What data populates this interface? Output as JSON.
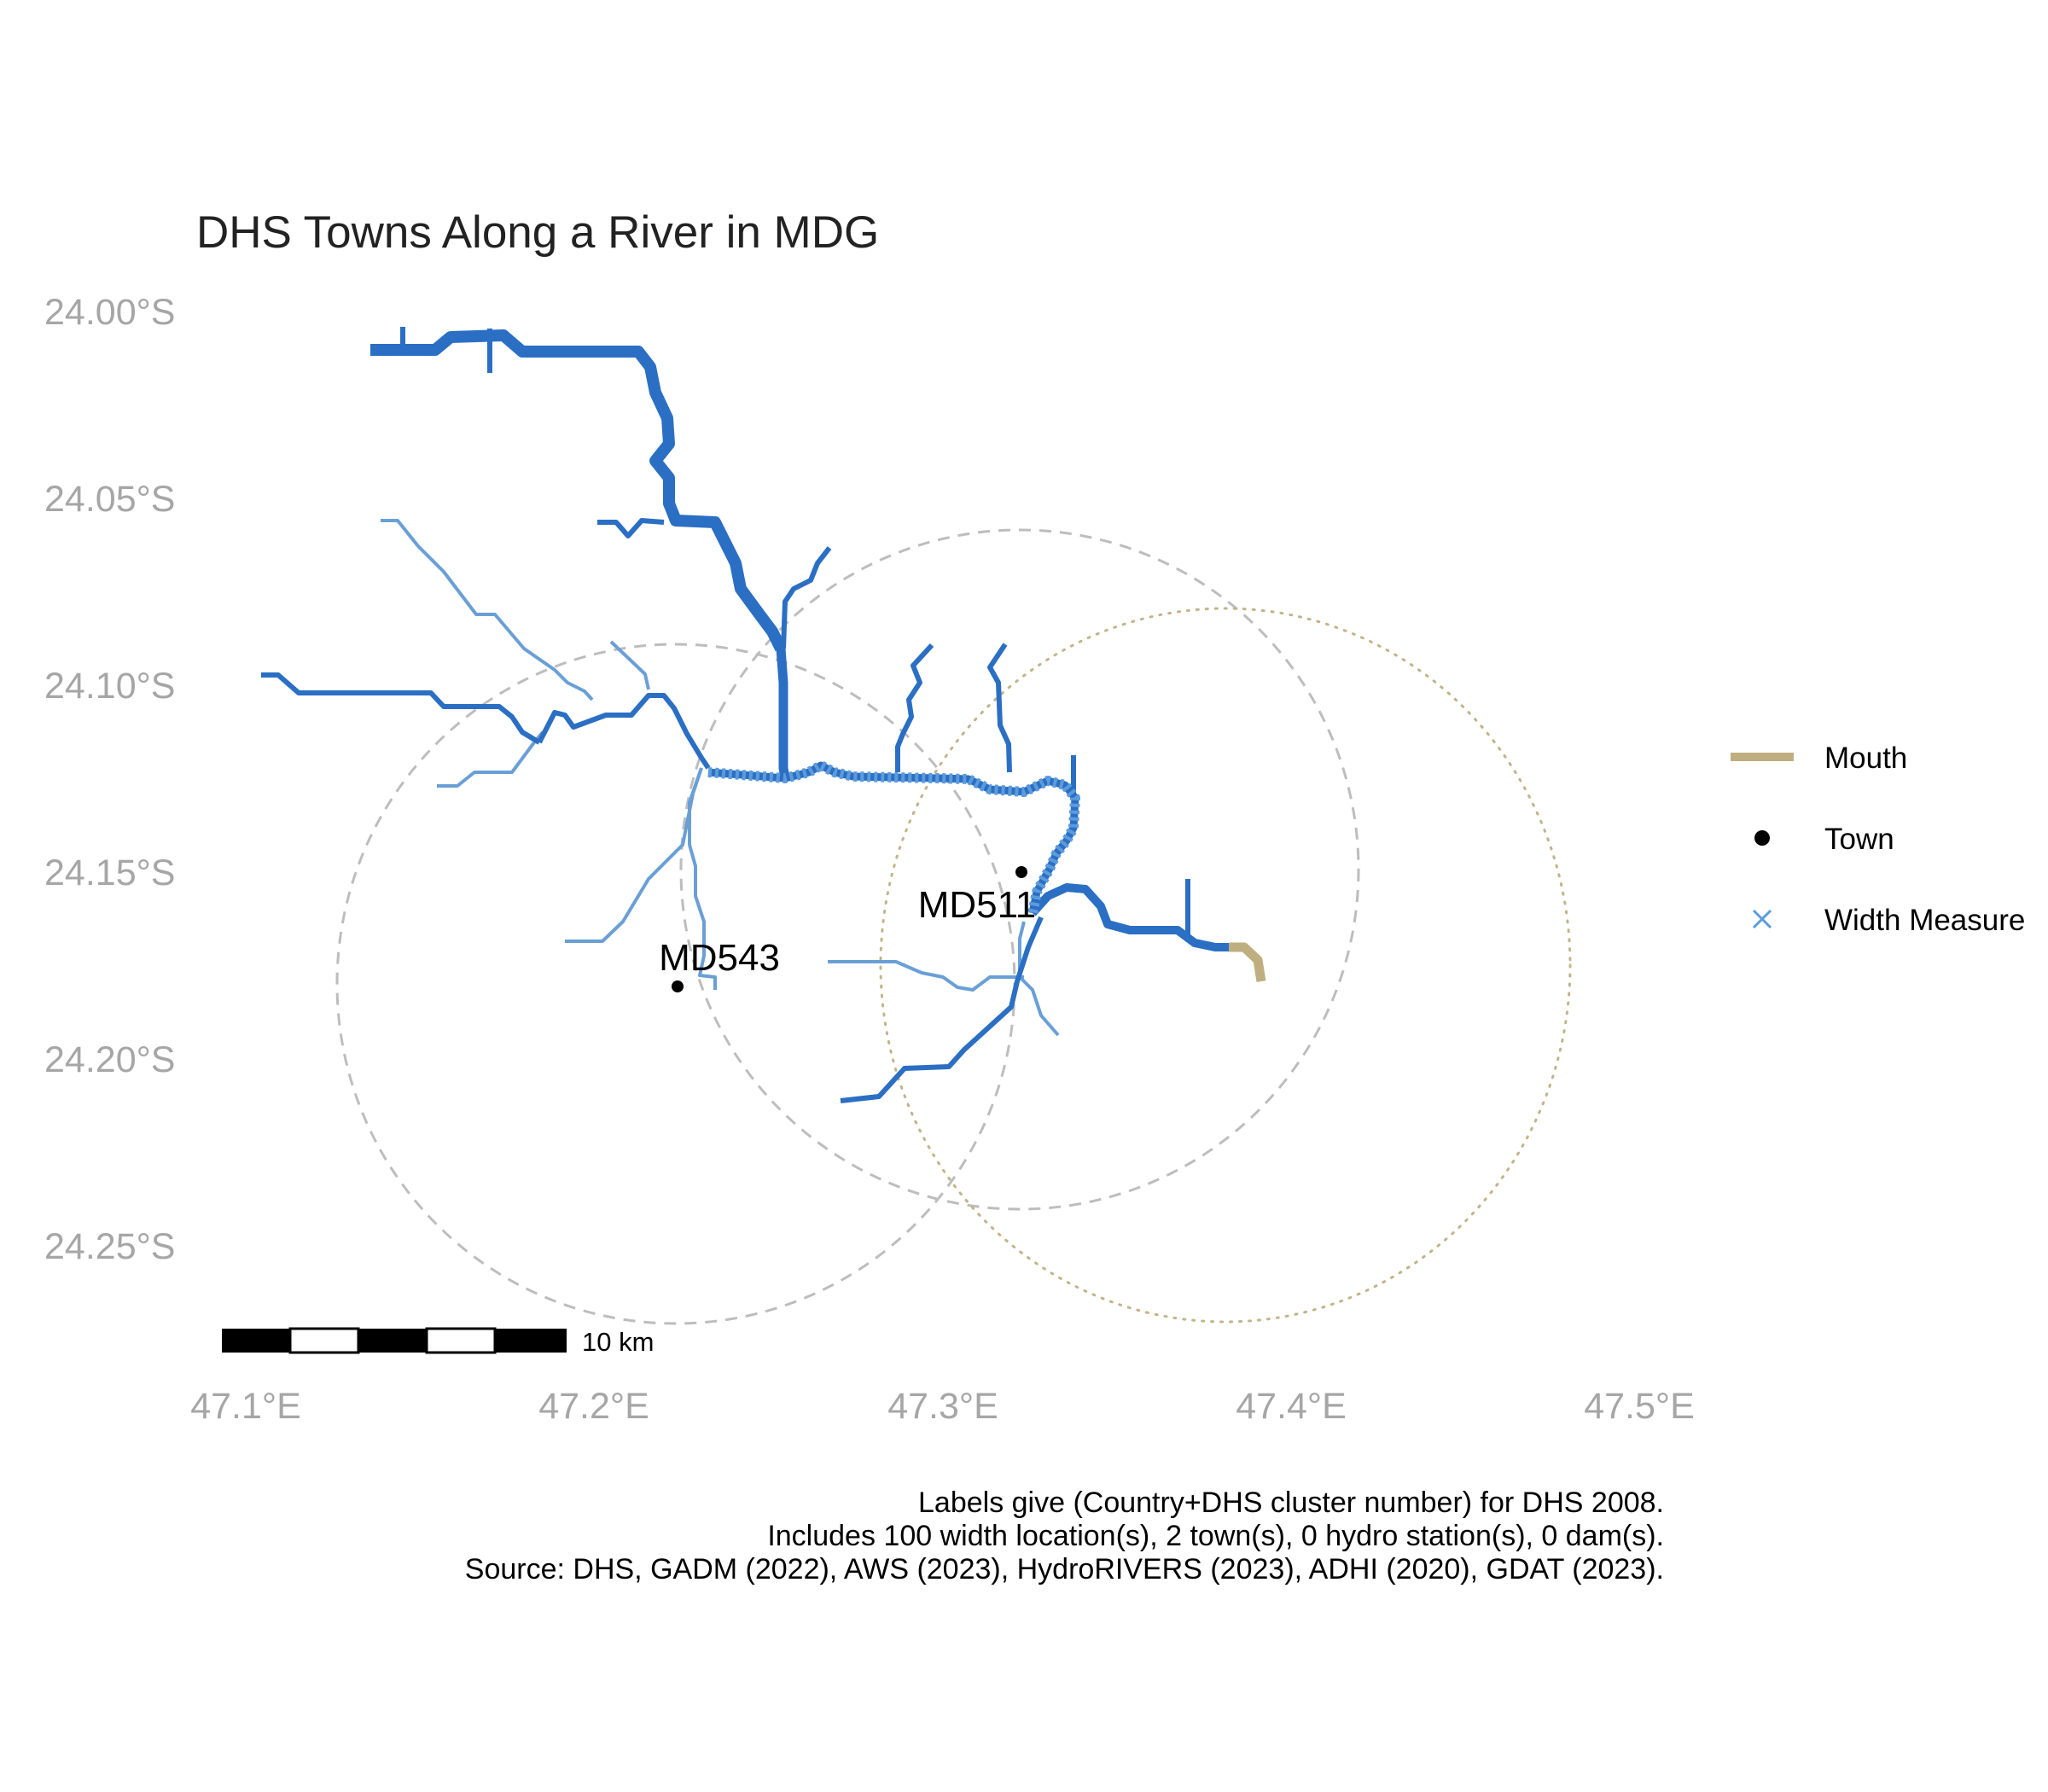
{
  "title": "DHS Towns Along a River in MDG",
  "axes": {
    "y_ticks": [
      "24.00°S",
      "24.05°S",
      "24.10°S",
      "24.15°S",
      "24.20°S",
      "24.25°S"
    ],
    "x_ticks": [
      "47.1°E",
      "47.2°E",
      "47.3°E",
      "47.4°E",
      "47.5°E"
    ]
  },
  "legend": {
    "items": [
      {
        "label": "Mouth",
        "symbol": "line",
        "color": "#bfae7f"
      },
      {
        "label": "Town",
        "symbol": "dot",
        "color": "#000000"
      },
      {
        "label": "Width Measure",
        "symbol": "cross",
        "color": "#5b9bdc"
      }
    ]
  },
  "towns": [
    {
      "label": "MD511",
      "lon": 47.327,
      "lat": 24.15
    },
    {
      "label": "MD543",
      "lon": 47.229,
      "lat": 24.18
    }
  ],
  "scale_bar": {
    "label": "10 km"
  },
  "caption": [
    "Labels give (Country+DHS cluster number) for DHS 2008.",
    "Includes 100 width location(s), 2 town(s), 0 hydro station(s), 0 dam(s).",
    "Source: DHS, GADM (2022), AWS (2023), HydroRIVERS (2023), ADHI (2020), GDAT (2023)."
  ],
  "colors": {
    "river_main": "#2b6fc4",
    "river_trib": "#6a9fd6",
    "width_measure": "#5b9bdc",
    "mouth": "#bfae7f",
    "buffer_circle": "#bdbdbd",
    "mouth_circle": "#c2b48a",
    "tick": "#a6a6a6"
  }
}
